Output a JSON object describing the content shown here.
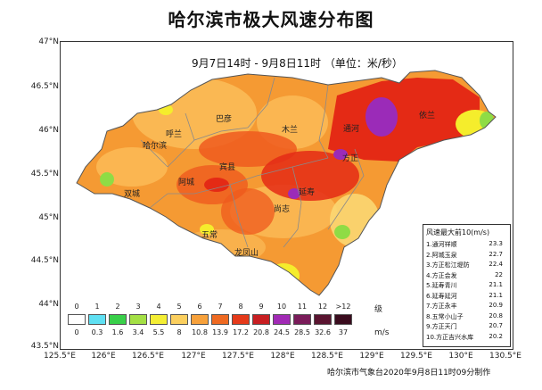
{
  "title": "哈尔滨市极大风速分布图",
  "subtitle": "9月7日14时 - 9月8日11时 （单位：米/秒）",
  "colors": {
    "frame_bg": "#ffffff",
    "base_orange": "#f59a33",
    "light_orange": "#fbbb57",
    "pale": "#fbd772",
    "red_orange": "#ef5a1e",
    "red": "#e42a15",
    "purple": "#9b2bb8",
    "yellow": "#f5ed2c",
    "green": "#8fdc45"
  },
  "latitude_labels": [
    "47°N",
    "46.5°N",
    "46°N",
    "45.5°N",
    "45°N",
    "44.5°N",
    "44°N",
    "43.5°N"
  ],
  "longitude_labels": [
    "125.5°E",
    "126°E",
    "126.5°E",
    "127°E",
    "127.5°E",
    "128°E",
    "128.5°E",
    "129°E",
    "129.5°E",
    "130°E",
    "130.5°E"
  ],
  "places": {
    "bayan": "巴彦",
    "mulan": "木兰",
    "tonghe": "通河",
    "yilan": "依兰",
    "hulan": "呼兰",
    "harbin": "哈尔滨",
    "binxian": "宾县",
    "shuangcheng": "双城",
    "acheng": "阿城",
    "yanshou": "延寿",
    "fangzheng": "方正",
    "shangzhi": "尚志",
    "wuchang": "五常",
    "longfengshan": "龙凤山"
  },
  "legend": {
    "levels": [
      "0",
      "1",
      "2",
      "3",
      "4",
      "5",
      "6",
      "7",
      "8",
      "9",
      "10",
      "11",
      "12",
      ">12"
    ],
    "level_unit": "级",
    "speeds": [
      "0",
      "0.3",
      "1.6",
      "3.4",
      "5.5",
      "8",
      "10.8",
      "13.9",
      "17.2",
      "20.8",
      "24.5",
      "28.5",
      "32.6",
      "37"
    ],
    "speed_unit": "m/s",
    "swatches": [
      "#ffffff",
      "#5fe0f2",
      "#39d04a",
      "#a4e045",
      "#f4ee34",
      "#fbcf5e",
      "#f7a13b",
      "#ef6a22",
      "#e53a1a",
      "#c81f22",
      "#a12ab5",
      "#7a1c5a",
      "#5a1430",
      "#3a0c1e"
    ]
  },
  "rank_box": {
    "title": "风速最大前10(m/s)",
    "rows": [
      {
        "name": "1.通河祥顺",
        "value": "23.3"
      },
      {
        "name": "2.阿城玉泉",
        "value": "22.7"
      },
      {
        "name": "3.方正松江堤防",
        "value": "22.4"
      },
      {
        "name": "4.方正会发",
        "value": "22"
      },
      {
        "name": "5.延寿青川",
        "value": "21.1"
      },
      {
        "name": "6.延寿延河",
        "value": "21.1"
      },
      {
        "name": "7.方正永丰",
        "value": "20.9"
      },
      {
        "name": "8.五常小山子",
        "value": "20.8"
      },
      {
        "name": "9.方正天门",
        "value": "20.7"
      },
      {
        "name": "10.方正吉兴水库",
        "value": "20.2"
      }
    ]
  },
  "credit": "哈尔滨市气象台2020年9月8日11时09分制作"
}
